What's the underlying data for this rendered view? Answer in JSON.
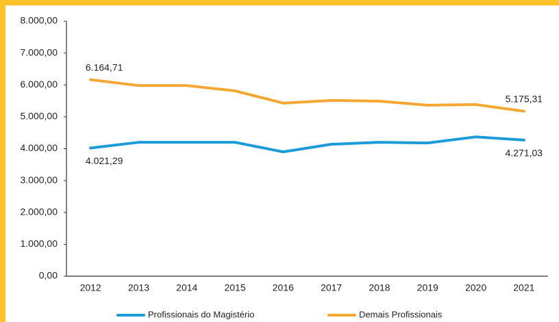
{
  "chart_data": {
    "type": "line",
    "categories": [
      "2012",
      "2013",
      "2014",
      "2015",
      "2016",
      "2017",
      "2018",
      "2019",
      "2020",
      "2021"
    ],
    "series": [
      {
        "name": "Profissionais do Magistério",
        "color": "#1b9bd7",
        "values": [
          4021.29,
          4200,
          4200,
          4200,
          3900,
          4140,
          4200,
          4180,
          4370,
          4271.03
        ],
        "value_labels": [
          "4.021,29",
          null,
          null,
          null,
          null,
          null,
          null,
          null,
          null,
          "4.271,03"
        ]
      },
      {
        "name": "Demais Profissionais",
        "color": "#f5a731",
        "values": [
          6164.71,
          5980,
          5980,
          5815,
          5430,
          5515,
          5490,
          5365,
          5385,
          5175.31
        ],
        "value_labels": [
          "6.164,71",
          null,
          null,
          null,
          null,
          null,
          null,
          null,
          null,
          "5.175,31"
        ]
      }
    ],
    "ylim": [
      0,
      8000
    ],
    "yticks": [
      {
        "value": 0,
        "label": "0,00"
      },
      {
        "value": 1000,
        "label": "1.000,00"
      },
      {
        "value": 2000,
        "label": "2.000,00"
      },
      {
        "value": 3000,
        "label": "3.000,00"
      },
      {
        "value": 4000,
        "label": "4.000,00"
      },
      {
        "value": 5000,
        "label": "5.000,00"
      },
      {
        "value": 6000,
        "label": "6.000,00"
      },
      {
        "value": 7000,
        "label": "7.000,00"
      },
      {
        "value": 8000,
        "label": "8.000,00"
      }
    ],
    "grid": false,
    "legend": "bottom"
  }
}
